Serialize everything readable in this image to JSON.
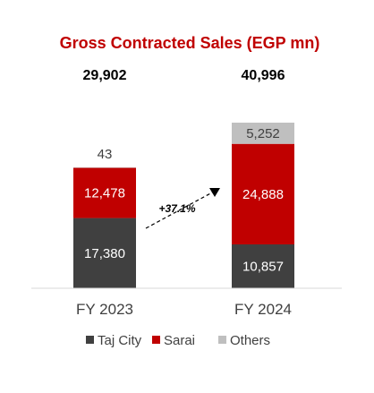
{
  "chart_data": {
    "type": "bar",
    "stacked": true,
    "title": "Gross Contracted Sales (EGP mn)",
    "categories": [
      "FY 2023",
      "FY 2024"
    ],
    "totals": [
      "29,902",
      "40,996"
    ],
    "series": [
      {
        "name": "Taj City",
        "values": [
          17380,
          10857
        ],
        "labels": [
          "17,380",
          "10,857"
        ],
        "color": "#404040"
      },
      {
        "name": "Sarai",
        "values": [
          12478,
          24888
        ],
        "labels": [
          "12,478",
          "24,888"
        ],
        "color": "#c00000"
      },
      {
        "name": "Others",
        "values": [
          43,
          5252
        ],
        "labels": [
          "43",
          "5,252"
        ],
        "color": "#bfbfbf"
      }
    ],
    "annotation": "+37.1%",
    "legend_position": "bottom",
    "grid": false,
    "title_color": "#c00000"
  }
}
